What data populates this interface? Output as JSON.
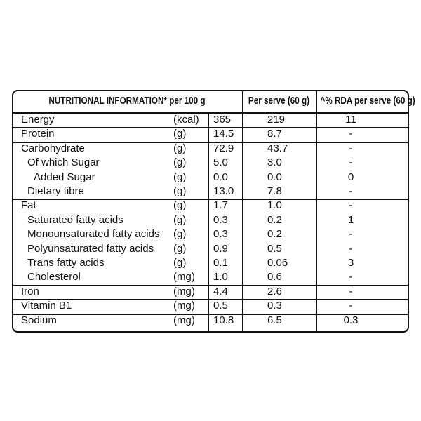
{
  "header": {
    "title": "NUTRITIONAL INFORMATION* per 100 g",
    "per_serve": "Per serve (60 g)",
    "rda": "^% RDA per serve (60 g)"
  },
  "rows": [
    {
      "name": "Energy",
      "unit": "(kcal)",
      "per_100g": "365",
      "per_serve": "219",
      "rda": "11"
    },
    {
      "name": "Protein",
      "unit": "(g)",
      "per_100g": "14.5",
      "per_serve": "8.7",
      "rda": "-"
    },
    {
      "name": "Carbohydrate",
      "unit": "(g)",
      "per_100g": "72.9",
      "per_serve": "43.7",
      "rda": "-",
      "children": [
        {
          "name": "Of which Sugar",
          "unit": "(g)",
          "per_100g": "5.0",
          "per_serve": "3.0",
          "rda": "-",
          "children": [
            {
              "name": "Added Sugar",
              "unit": "(g)",
              "per_100g": "0.0",
              "per_serve": "0.0",
              "rda": "0"
            }
          ]
        },
        {
          "name": "Dietary fibre",
          "unit": "(g)",
          "per_100g": "13.0",
          "per_serve": "7.8",
          "rda": "-"
        }
      ]
    },
    {
      "name": "Fat",
      "unit": "(g)",
      "per_100g": "1.7",
      "per_serve": "1.0",
      "rda": "-",
      "children": [
        {
          "name": "Saturated fatty acids",
          "unit": "(g)",
          "per_100g": "0.3",
          "per_serve": "0.2",
          "rda": "1"
        },
        {
          "name": "Monounsaturated fatty acids",
          "unit": "(g)",
          "per_100g": "0.3",
          "per_serve": "0.2",
          "rda": "-"
        },
        {
          "name": "Polyunsaturated fatty acids",
          "unit": "(g)",
          "per_100g": "0.9",
          "per_serve": "0.5",
          "rda": "-"
        },
        {
          "name": "Trans fatty acids",
          "unit": "(g)",
          "per_100g": "0.1",
          "per_serve": "0.06",
          "rda": "3"
        },
        {
          "name": "Cholesterol",
          "unit": "(mg)",
          "per_100g": "1.0",
          "per_serve": "0.6",
          "rda": "-"
        }
      ]
    },
    {
      "name": "Iron",
      "unit": "(mg)",
      "per_100g": "4.4",
      "per_serve": "2.6",
      "rda": "-"
    },
    {
      "name": "Vitamin B1",
      "unit": "(mg)",
      "per_100g": "0.5",
      "per_serve": "0.3",
      "rda": "-"
    },
    {
      "name": "Sodium",
      "unit": "(mg)",
      "per_100g": "10.8",
      "per_serve": "6.5",
      "rda": "0.3"
    }
  ]
}
